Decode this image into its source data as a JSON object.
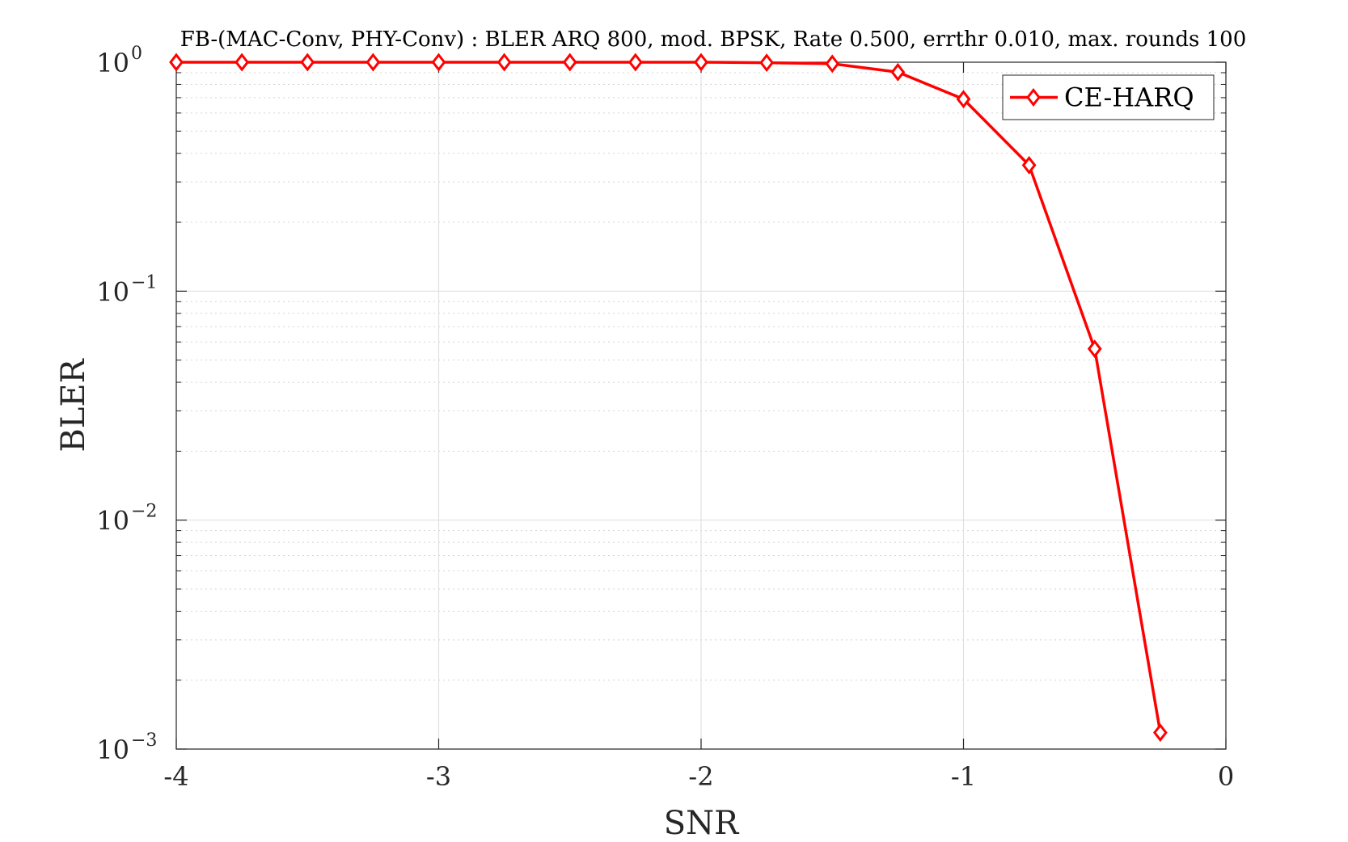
{
  "chart_data": {
    "type": "line",
    "title": "FB-(MAC-Conv, PHY-Conv) : BLER ARQ 800, mod. BPSK, Rate 0.500, errthr 0.010, max. rounds 100",
    "xlabel": "SNR",
    "ylabel": "BLER",
    "xlim": [
      -4,
      0
    ],
    "ylim": [
      0.001,
      1
    ],
    "yscale": "log",
    "grid": true,
    "legend_position": "top-right",
    "x_ticks": [
      {
        "value": -4,
        "label": "-4"
      },
      {
        "value": -3,
        "label": "-3"
      },
      {
        "value": -2,
        "label": "-2"
      },
      {
        "value": -1,
        "label": "-1"
      },
      {
        "value": 0,
        "label": "0"
      }
    ],
    "y_ticks": [
      {
        "value": 0.001,
        "base": "10",
        "exp": "−3"
      },
      {
        "value": 0.01,
        "base": "10",
        "exp": "−2"
      },
      {
        "value": 0.1,
        "base": "10",
        "exp": "−1"
      },
      {
        "value": 1,
        "base": "10",
        "exp": "0"
      }
    ],
    "series": [
      {
        "name": "CE-HARQ",
        "color": "#ff0000",
        "marker": "diamond",
        "x": [
          -4,
          -3.75,
          -3.5,
          -3.25,
          -3,
          -2.75,
          -2.5,
          -2.25,
          -2,
          -1.75,
          -1.5,
          -1.25,
          -1,
          -0.75,
          -0.5,
          -0.25
        ],
        "y": [
          1,
          1,
          1,
          1,
          1,
          1,
          1,
          1,
          1,
          0.995,
          0.985,
          0.905,
          0.69,
          0.355,
          0.056,
          0.00118
        ]
      }
    ]
  }
}
